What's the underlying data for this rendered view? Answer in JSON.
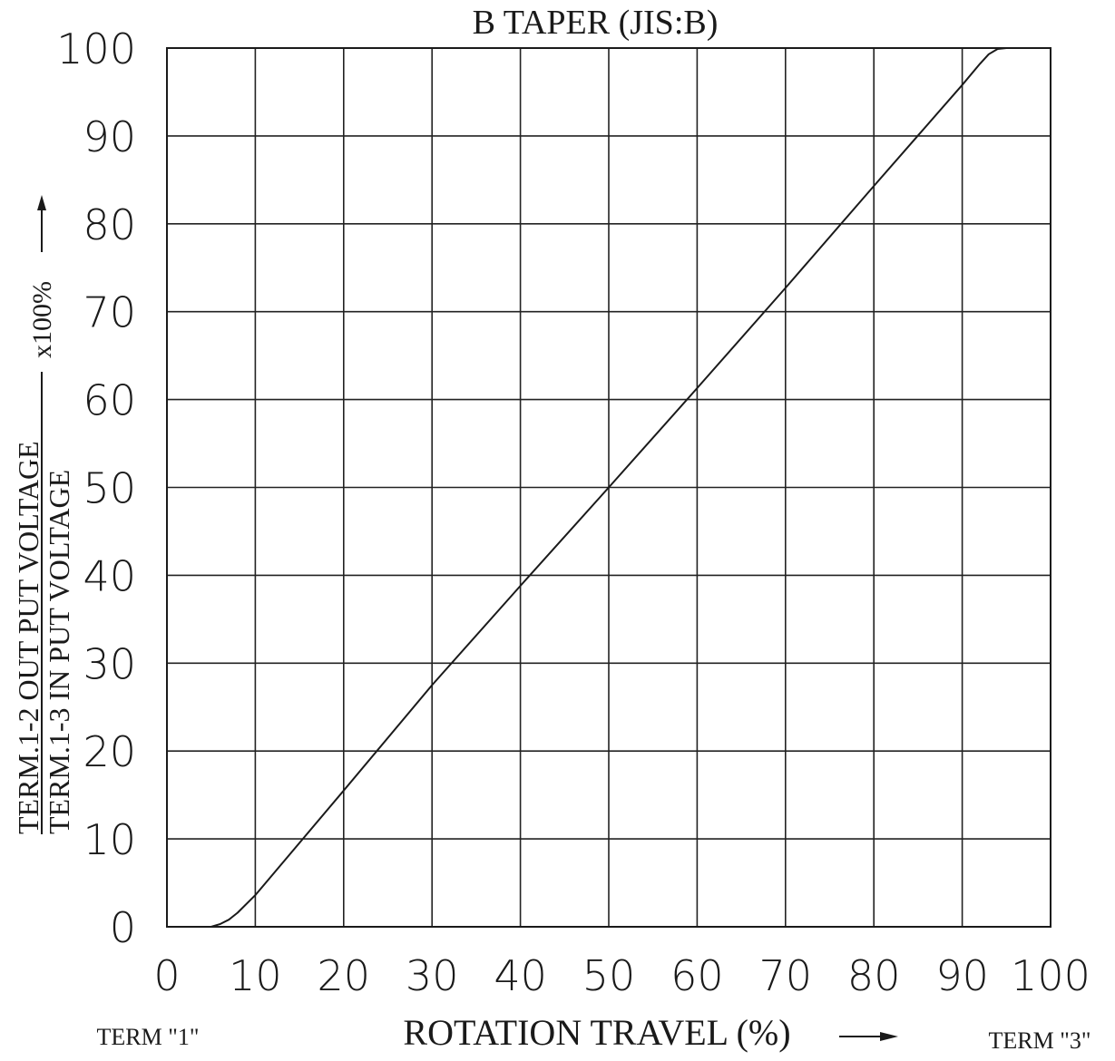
{
  "chart_data": {
    "type": "line",
    "title": "B TAPER (JIS:B)",
    "xlabel": "ROTATION TRAVEL (%)",
    "ylabel_numerator": "TERM.1-2 OUT PUT VOLTAGE",
    "ylabel_denominator": "TERM.1-3 IN PUT VOLTAGE",
    "ylabel_suffix": "x100%",
    "term_left": "TERM \"1\"",
    "term_right": "TERM \"3\"",
    "xlim": [
      0,
      100
    ],
    "ylim": [
      0,
      100
    ],
    "x_ticks": [
      "0",
      "10",
      "20",
      "30",
      "40",
      "50",
      "60",
      "70",
      "80",
      "90",
      "100"
    ],
    "y_ticks": [
      "0",
      "10",
      "20",
      "30",
      "40",
      "50",
      "60",
      "70",
      "80",
      "90",
      "100"
    ],
    "grid": true,
    "line_color": "#1a1a1a",
    "series": [
      {
        "x": [
          0,
          5,
          6,
          7,
          8,
          10,
          20,
          30,
          40,
          50,
          60,
          70,
          80,
          90,
          92,
          93,
          94,
          95,
          100
        ],
        "y": [
          0,
          0,
          0.3,
          0.8,
          1.6,
          3.6,
          15.5,
          27.5,
          38.8,
          50,
          61.3,
          72.7,
          84.3,
          95.8,
          98.2,
          99.3,
          99.9,
          100,
          100
        ]
      }
    ]
  }
}
